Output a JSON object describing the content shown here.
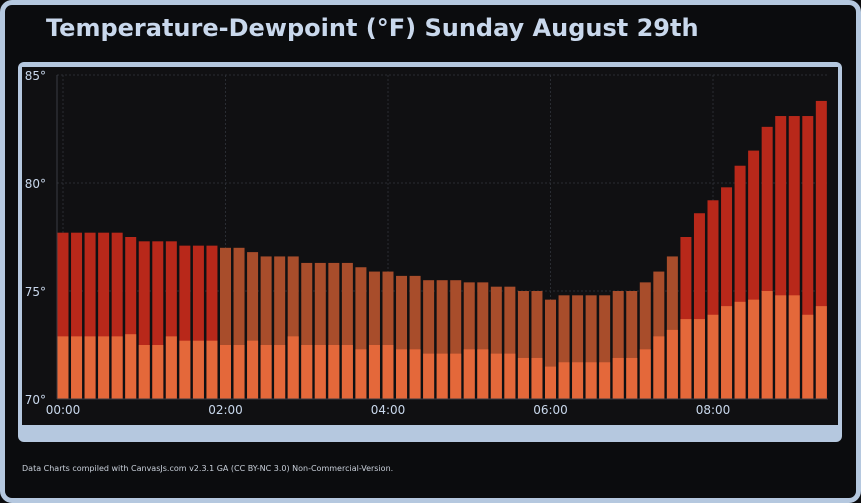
{
  "title": "Temperature-Dewpoint (°F) Sunday August 29th",
  "footer": "Data Charts compiled with CanvasJs.com v2.3.1 GA (CC BY-NC 3.0) Non-Commercial-Version.",
  "colors": {
    "temperature_red": "#b8281a",
    "temperature_brown": "#a84d2b",
    "dewpoint": "#e4683a",
    "panel": "#b5c8df",
    "background": "#0b0c0e",
    "plot": "#101012",
    "text": "#c9d8ec"
  },
  "chart_data": {
    "type": "bar",
    "title": "Temperature-Dewpoint (°F) Sunday August 29th",
    "xlabel": "",
    "ylabel": "",
    "ylim": [
      70,
      85
    ],
    "y_ticks": [
      "70°",
      "75°",
      "80°",
      "85°"
    ],
    "x_ticks": [
      "00:00",
      "02:00",
      "04:00",
      "06:00",
      "08:00"
    ],
    "x_tick_values": [
      0,
      120,
      240,
      360,
      480
    ],
    "grid": true,
    "x_minutes": [
      0,
      10,
      20,
      30,
      40,
      50,
      60,
      70,
      80,
      90,
      100,
      110,
      120,
      130,
      140,
      150,
      160,
      170,
      180,
      190,
      200,
      210,
      220,
      230,
      240,
      250,
      260,
      270,
      280,
      290,
      300,
      310,
      320,
      330,
      340,
      350,
      360,
      370,
      380,
      390,
      400,
      410,
      420,
      430,
      440,
      450,
      460,
      470,
      480,
      490,
      500,
      510,
      520,
      530,
      540,
      550,
      560
    ],
    "series": [
      {
        "values": [
          77.7,
          77.7,
          77.7,
          77.7,
          77.7,
          77.5,
          77.3,
          77.3,
          77.3,
          77.1,
          77.1,
          77.1,
          77.0,
          77.0,
          76.8,
          76.6,
          76.6,
          76.6,
          76.3,
          76.3,
          76.3,
          76.3,
          76.1,
          75.9,
          75.9,
          75.7,
          75.7,
          75.5,
          75.5,
          75.5,
          75.4,
          75.4,
          75.2,
          75.2,
          75.0,
          75.0,
          74.6,
          74.8,
          74.8,
          74.8,
          74.8,
          75.0,
          75.0,
          75.4,
          75.9,
          76.6,
          77.5,
          78.6,
          79.2,
          79.8,
          80.8,
          81.5,
          82.6,
          83.1,
          83.1,
          83.1,
          83.8
        ],
        "band_colors": [
          "red",
          "red",
          "red",
          "red",
          "red",
          "red",
          "red",
          "red",
          "red",
          "red",
          "red",
          "red",
          "brown",
          "brown",
          "brown",
          "brown",
          "brown",
          "brown",
          "brown",
          "brown",
          "brown",
          "brown",
          "brown",
          "brown",
          "brown",
          "brown",
          "brown",
          "brown",
          "brown",
          "brown",
          "brown",
          "brown",
          "brown",
          "brown",
          "brown",
          "brown",
          "brown",
          "brown",
          "brown",
          "brown",
          "brown",
          "brown",
          "brown",
          "brown",
          "brown",
          "brown",
          "red",
          "red",
          "red",
          "red",
          "red",
          "red",
          "red",
          "red",
          "red",
          "red",
          "red"
        ]
      },
      {
        "values": [
          72.9,
          72.9,
          72.9,
          72.9,
          72.9,
          73.0,
          72.5,
          72.5,
          72.9,
          72.7,
          72.7,
          72.7,
          72.5,
          72.5,
          72.7,
          72.5,
          72.5,
          72.9,
          72.5,
          72.5,
          72.5,
          72.5,
          72.3,
          72.5,
          72.5,
          72.3,
          72.3,
          72.1,
          72.1,
          72.1,
          72.3,
          72.3,
          72.1,
          72.1,
          71.9,
          71.9,
          71.5,
          71.7,
          71.7,
          71.7,
          71.7,
          71.9,
          71.9,
          72.3,
          72.9,
          73.2,
          73.7,
          73.7,
          73.9,
          74.3,
          74.5,
          74.6,
          75.0,
          74.8,
          74.8,
          73.9,
          74.3
        ]
      }
    ]
  }
}
